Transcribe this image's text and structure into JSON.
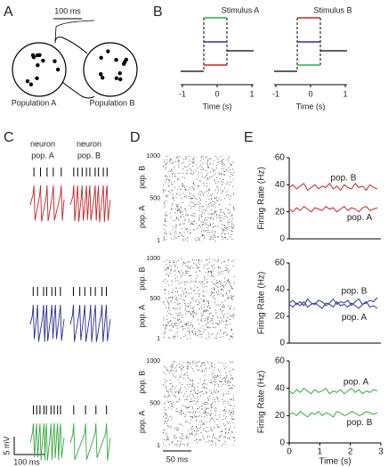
{
  "panels": {
    "A": {
      "label": "A",
      "scale": "100 ms",
      "left": "Population A",
      "right": "Population B"
    },
    "B": {
      "label": "B",
      "titles": [
        "Stimulus A",
        "Stimulus B"
      ],
      "xticks": [
        -1,
        0,
        1
      ],
      "xlabel": "Time (s)"
    },
    "C": {
      "label": "C",
      "col_a": [
        "neuron",
        "pop. A"
      ],
      "col_b": [
        "neuron",
        "pop. B"
      ],
      "vscale": "5 mV",
      "hscale": "100 ms"
    },
    "D": {
      "label": "D",
      "yticks": [
        1,
        500,
        1000
      ],
      "upper": "pop. B",
      "lower": "pop. A",
      "scale": "50 ms"
    },
    "E": {
      "label": "E"
    }
  },
  "chart_data": [
    {
      "type": "line",
      "ylabel": "Firing Rate (Hz)",
      "ylim": [
        0,
        60
      ],
      "yticks": [
        0,
        20,
        40,
        60
      ],
      "xlim": [
        0,
        3
      ],
      "x": [
        0,
        0.12,
        0.24,
        0.36,
        0.48,
        0.6,
        0.72,
        0.84,
        0.96,
        1.08,
        1.2,
        1.32,
        1.44,
        1.56,
        1.68,
        1.8,
        1.92,
        2.04,
        2.16,
        2.28,
        2.4,
        2.52,
        2.64,
        2.76,
        2.88
      ],
      "series": [
        {
          "name": "pop. B",
          "color": "#c0272d",
          "values": [
            38,
            40,
            37,
            39,
            41,
            36,
            38,
            40,
            37,
            39,
            38,
            41,
            37,
            39,
            36,
            40,
            38,
            37,
            41,
            38,
            39,
            36,
            40,
            38,
            37
          ]
        },
        {
          "name": "pop. A",
          "color": "#c0272d",
          "values": [
            22,
            20,
            23,
            21,
            24,
            22,
            20,
            23,
            22,
            21,
            24,
            22,
            23,
            20,
            22,
            24,
            21,
            23,
            22,
            20,
            23,
            24,
            21,
            22,
            23
          ]
        }
      ]
    },
    {
      "type": "line",
      "ylabel": "Firing Rate (Hz)",
      "ylim": [
        0,
        60
      ],
      "yticks": [
        0,
        20,
        40,
        60
      ],
      "xlim": [
        0,
        3
      ],
      "x": [
        0,
        0.12,
        0.24,
        0.36,
        0.48,
        0.6,
        0.72,
        0.84,
        0.96,
        1.08,
        1.2,
        1.32,
        1.44,
        1.56,
        1.68,
        1.8,
        1.92,
        2.04,
        2.16,
        2.28,
        2.4,
        2.52,
        2.64,
        2.76,
        2.88
      ],
      "series": [
        {
          "name": "pop. B",
          "color": "#2e3192",
          "values": [
            30,
            32,
            29,
            31,
            28,
            33,
            30,
            29,
            32,
            31,
            28,
            30,
            33,
            29,
            31,
            30,
            32,
            28,
            31,
            33,
            29,
            30,
            32,
            31,
            34
          ]
        },
        {
          "name": "pop. A",
          "color": "#2e3192",
          "values": [
            29,
            27,
            30,
            28,
            31,
            27,
            29,
            30,
            28,
            26,
            30,
            29,
            27,
            31,
            28,
            29,
            27,
            30,
            28,
            26,
            29,
            31,
            27,
            28,
            26
          ]
        }
      ]
    },
    {
      "type": "line",
      "ylabel": "Firing Rate (Hz)",
      "ylim": [
        0,
        60
      ],
      "yticks": [
        0,
        20,
        40,
        60
      ],
      "xlim": [
        0,
        3
      ],
      "xticks": [
        0,
        1,
        2,
        3
      ],
      "xlabel": "Time (s)",
      "x": [
        0,
        0.12,
        0.24,
        0.36,
        0.48,
        0.6,
        0.72,
        0.84,
        0.96,
        1.08,
        1.2,
        1.32,
        1.44,
        1.56,
        1.68,
        1.8,
        1.92,
        2.04,
        2.16,
        2.28,
        2.4,
        2.52,
        2.64,
        2.76,
        2.88
      ],
      "series": [
        {
          "name": "pop. A",
          "color": "#39a845",
          "values": [
            38,
            36,
            39,
            37,
            40,
            38,
            36,
            39,
            37,
            38,
            40,
            36,
            38,
            37,
            39,
            36,
            38,
            40,
            37,
            39,
            36,
            38,
            37,
            39,
            38
          ]
        },
        {
          "name": "pop. B",
          "color": "#39a845",
          "values": [
            21,
            22,
            20,
            23,
            21,
            19,
            22,
            21,
            23,
            20,
            22,
            21,
            19,
            23,
            22,
            20,
            21,
            23,
            22,
            20,
            21,
            23,
            22,
            21,
            22
          ]
        }
      ]
    }
  ]
}
